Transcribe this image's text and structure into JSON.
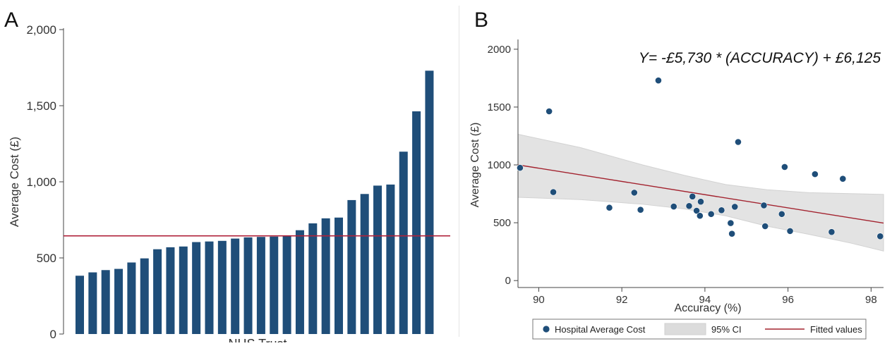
{
  "panels": {
    "a_letter": "A",
    "b_letter": "B"
  },
  "chart_data": [
    {
      "type": "bar",
      "title": "",
      "xlabel": "NHS Trust",
      "ylabel": "Average Cost (£)",
      "ylim": [
        0,
        2000
      ],
      "yticks": [
        0,
        500,
        1000,
        1500,
        2000
      ],
      "ytick_labels": [
        "0",
        "500",
        "1,000",
        "1,500",
        "2,000"
      ],
      "bar_color": "#1f4e79",
      "reference_line": {
        "value": 645,
        "color": "#b0213a"
      },
      "values": [
        383,
        405,
        420,
        428,
        470,
        497,
        557,
        570,
        575,
        604,
        608,
        612,
        627,
        635,
        638,
        640,
        645,
        682,
        727,
        760,
        765,
        880,
        920,
        975,
        982,
        1198,
        1463,
        1730
      ]
    },
    {
      "type": "scatter",
      "title": "",
      "annotation": "Y= -£5,730 * (ACCURACY) + £6,125",
      "xlabel": "Accuracy (%)",
      "ylabel": "Average Cost (£)",
      "xlim": [
        89.5,
        98.3
      ],
      "ylim": [
        -60,
        2060
      ],
      "xticks": [
        90,
        92,
        94,
        96,
        98
      ],
      "yticks": [
        0,
        500,
        1000,
        1500,
        2000
      ],
      "legend": [
        {
          "label": "Hospital Average Cost",
          "kind": "marker",
          "color": "#1f4e79"
        },
        {
          "label": "95% CI",
          "kind": "band",
          "color": "#dcdcdc"
        },
        {
          "label": "Fitted values",
          "kind": "line",
          "color": "#a3232f"
        }
      ],
      "legend_position": "bottom",
      "points": [
        {
          "x": 89.55,
          "y": 975
        },
        {
          "x": 90.25,
          "y": 1463
        },
        {
          "x": 90.35,
          "y": 765
        },
        {
          "x": 91.7,
          "y": 630
        },
        {
          "x": 92.3,
          "y": 760
        },
        {
          "x": 92.45,
          "y": 612
        },
        {
          "x": 92.88,
          "y": 1730
        },
        {
          "x": 93.25,
          "y": 640
        },
        {
          "x": 93.62,
          "y": 645
        },
        {
          "x": 93.7,
          "y": 727
        },
        {
          "x": 93.8,
          "y": 604
        },
        {
          "x": 93.88,
          "y": 560
        },
        {
          "x": 93.9,
          "y": 682
        },
        {
          "x": 94.15,
          "y": 575
        },
        {
          "x": 94.4,
          "y": 608
        },
        {
          "x": 94.62,
          "y": 497
        },
        {
          "x": 94.65,
          "y": 405
        },
        {
          "x": 94.72,
          "y": 638
        },
        {
          "x": 94.8,
          "y": 1198
        },
        {
          "x": 95.42,
          "y": 650
        },
        {
          "x": 95.45,
          "y": 470
        },
        {
          "x": 95.85,
          "y": 575
        },
        {
          "x": 95.92,
          "y": 982
        },
        {
          "x": 96.05,
          "y": 428
        },
        {
          "x": 96.65,
          "y": 920
        },
        {
          "x": 97.05,
          "y": 420
        },
        {
          "x": 97.32,
          "y": 880
        },
        {
          "x": 98.22,
          "y": 383
        }
      ],
      "fit": {
        "x": [
          89.5,
          98.3
        ],
        "y": [
          1000,
          497
        ]
      },
      "ci": {
        "x": [
          89.5,
          91,
          92.5,
          93.5,
          94.5,
          95.5,
          96.5,
          97.5,
          98.3
        ],
        "upper": [
          1265,
          1150,
          1000,
          910,
          830,
          785,
          760,
          752,
          745
        ],
        "lower": [
          720,
          700,
          660,
          620,
          560,
          470,
          400,
          325,
          255
        ]
      }
    }
  ]
}
